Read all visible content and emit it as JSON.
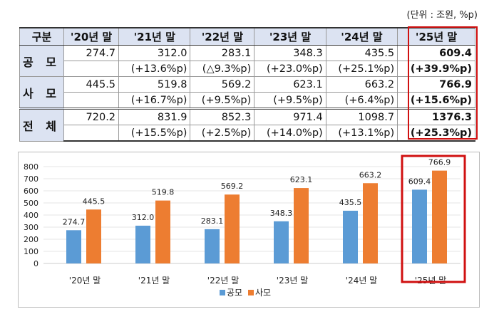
{
  "unit_note": "(단위 : 조원, %p)",
  "table": {
    "headers": [
      "구분",
      "'20년 말",
      "'21년 말",
      "'22년 말",
      "'23년 말",
      "'24년 말",
      "'25년 말"
    ],
    "rows": [
      {
        "label": "공 모",
        "values": [
          "274.7",
          "312.0",
          "283.1",
          "348.3",
          "435.5",
          "609.4"
        ],
        "changes": [
          "",
          "(+13.6%p)",
          "(△9.3%p)",
          "(+23.0%p)",
          "(+25.1%p)",
          "(+39.9%p)"
        ]
      },
      {
        "label": "사 모",
        "values": [
          "445.5",
          "519.8",
          "569.2",
          "623.1",
          "663.2",
          "766.9"
        ],
        "changes": [
          "",
          "(+16.7%p)",
          "(+9.5%p)",
          "(+9.5%p)",
          "(+6.4%p)",
          "(+15.6%p)"
        ]
      },
      {
        "label": "전 체",
        "values": [
          "720.2",
          "831.9",
          "852.3",
          "971.4",
          "1098.7",
          "1376.3"
        ],
        "changes": [
          "",
          "(+15.5%p)",
          "(+2.5%p)",
          "(+14.0%p)",
          "(+13.1%p)",
          "(+25.3%p)"
        ]
      }
    ],
    "highlight_color": "#d01010"
  },
  "chart_data": {
    "type": "bar",
    "categories": [
      "'20년 말",
      "'21년 말",
      "'22년 말",
      "'23년 말",
      "'24년 말",
      "'25년 말"
    ],
    "series": [
      {
        "name": "공모",
        "values": [
          274.7,
          312.0,
          283.1,
          348.3,
          435.5,
          609.4
        ],
        "color": "#5b9bd5"
      },
      {
        "name": "사모",
        "values": [
          445.5,
          519.8,
          569.2,
          623.1,
          663.2,
          766.9
        ],
        "color": "#ed7d31"
      }
    ],
    "ylim": [
      0,
      800
    ],
    "yticks": [
      0,
      100,
      200,
      300,
      400,
      500,
      600,
      700,
      800
    ],
    "grid": true,
    "legend": "bottom",
    "highlight_category": "'25년 말"
  }
}
